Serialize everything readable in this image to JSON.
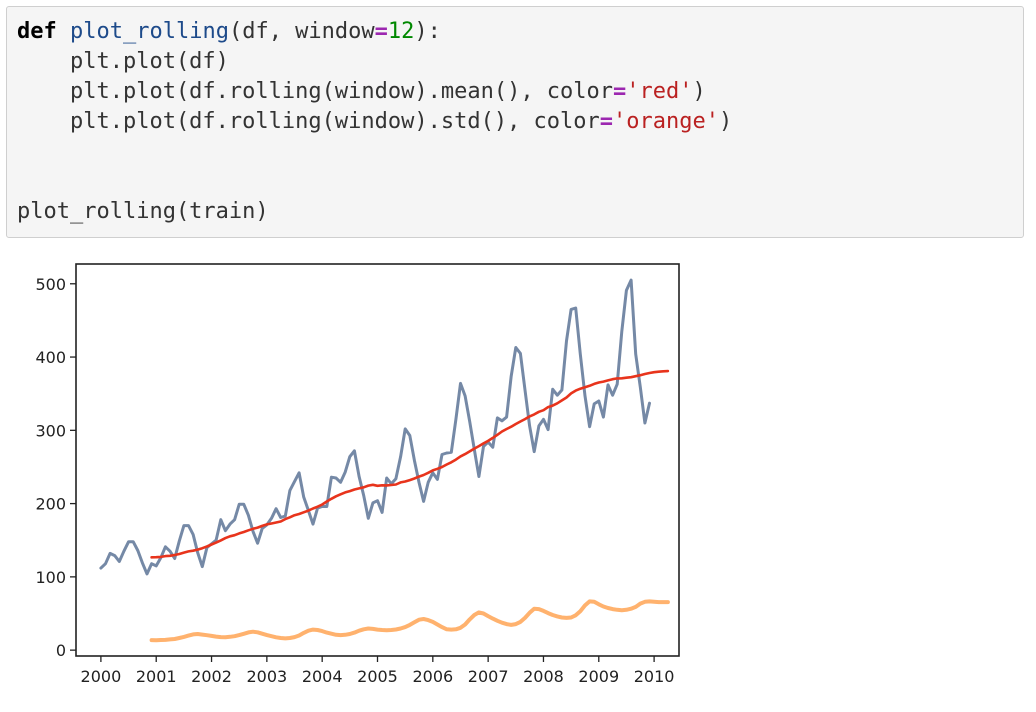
{
  "code_lines": [
    [
      {
        "t": "def",
        "c": "kw"
      },
      {
        "t": " "
      },
      {
        "t": "plot_rolling",
        "c": "fn"
      },
      {
        "t": "(df, window"
      },
      {
        "t": "=",
        "c": "op"
      },
      {
        "t": "12",
        "c": "num"
      },
      {
        "t": "):"
      }
    ],
    [
      {
        "t": "    plt.plot(df)"
      }
    ],
    [
      {
        "t": "    plt.plot(df.rolling(window).mean(), color"
      },
      {
        "t": "=",
        "c": "op"
      },
      {
        "t": "'red'",
        "c": "str"
      },
      {
        "t": ")"
      }
    ],
    [
      {
        "t": "    plt.plot(df.rolling(window).std(), color"
      },
      {
        "t": "=",
        "c": "op"
      },
      {
        "t": "'orange'",
        "c": "str"
      },
      {
        "t": ")"
      }
    ],
    [
      {
        "t": ""
      }
    ],
    [
      {
        "t": ""
      }
    ],
    [
      {
        "t": "plot_rolling(train)"
      }
    ]
  ],
  "chart_data": {
    "type": "line",
    "title": "",
    "xlabel": "",
    "ylabel": "",
    "xlim": [
      1999.55,
      2010.45
    ],
    "ylim": [
      -8,
      527
    ],
    "x_ticks": [
      "2000",
      "2001",
      "2002",
      "2003",
      "2004",
      "2005",
      "2006",
      "2007",
      "2008",
      "2009",
      "2010"
    ],
    "y_ticks": [
      0,
      100,
      200,
      300,
      400,
      500
    ],
    "grid": false,
    "legend": "none",
    "colors": {
      "series": "#7589a6",
      "mean": "#e8341c",
      "std": "#ffb26e"
    },
    "series": [
      {
        "key": "df",
        "x_start": 2000.0,
        "step": 0.0833333,
        "values": [
          112,
          118,
          132,
          129,
          121,
          135,
          148,
          148,
          136,
          119,
          104,
          118,
          115,
          126,
          141,
          135,
          125,
          149,
          170,
          170,
          158,
          133,
          114,
          140,
          145,
          150,
          178,
          163,
          172,
          178,
          199,
          199,
          184,
          162,
          146,
          166,
          171,
          180,
          193,
          181,
          183,
          218,
          230,
          242,
          209,
          191,
          172,
          194,
          196,
          196,
          236,
          235,
          229,
          243,
          264,
          272,
          237,
          211,
          180,
          201,
          204,
          188,
          235,
          227,
          234,
          264,
          302,
          293,
          259,
          229,
          203,
          229,
          242,
          233,
          267,
          269,
          270,
          315,
          364,
          347,
          312,
          274,
          237,
          278,
          284,
          277,
          317,
          313,
          318,
          374,
          413,
          405,
          355,
          306,
          271,
          306,
          315,
          301,
          356,
          348,
          355,
          422,
          465,
          467,
          404,
          347,
          305,
          336,
          340,
          318,
          362,
          348,
          363,
          435,
          491,
          505,
          404,
          359,
          310,
          337
        ]
      },
      {
        "key": "rolling_mean",
        "x_start": 2000.9167,
        "step": 0.0833333,
        "values": [
          126.7,
          126.9,
          127.3,
          128.3,
          128.8,
          129.8,
          131.2,
          133.1,
          134.7,
          135.7,
          137.2,
          139.1,
          141.5,
          144.2,
          146.8,
          149.8,
          152.9,
          155.3,
          156.8,
          159.3,
          161.3,
          163.6,
          165.6,
          167.2,
          169.5,
          171.6,
          172.8,
          174.2,
          175.6,
          178.8,
          181.3,
          184.1,
          185.8,
          188.1,
          190.5,
          193.3,
          195.8,
          198.8,
          202.9,
          206.5,
          210.0,
          212.7,
          215.3,
          217.0,
          219.2,
          220.8,
          222.3,
          224.5,
          225.6,
          224.3,
          225.0,
          224.8,
          225.4,
          226.0,
          228.9,
          230.2,
          232.1,
          234.2,
          236.8,
          239.0,
          242.0,
          245.3,
          247.5,
          250.0,
          253.3,
          256.4,
          260.0,
          264.4,
          267.6,
          271.2,
          275.0,
          278.5,
          282.2,
          285.6,
          289.7,
          293.9,
          298.4,
          301.8,
          305.0,
          308.6,
          312.0,
          315.3,
          319.0,
          321.8,
          325.3,
          327.4,
          331.7,
          333.8,
          336.9,
          340.9,
          344.8,
          350.4,
          354.2,
          356.8,
          358.9,
          360.8,
          363.3,
          365.3,
          366.5,
          368.1,
          369.8,
          370.8,
          371.0,
          371.8,
          372.5,
          373.9,
          375.2,
          376.9,
          378.3,
          379.3,
          380.0,
          380.5,
          380.8
        ]
      },
      {
        "key": "rolling_std",
        "x_start": 2000.9167,
        "step": 0.0833333,
        "values": [
          13.7,
          13.5,
          13.8,
          14.0,
          14.6,
          15.2,
          16.5,
          18.0,
          19.8,
          21.5,
          22.0,
          21.2,
          20.4,
          19.5,
          18.5,
          17.8,
          17.6,
          18.2,
          19.0,
          20.5,
          22.3,
          24.2,
          25.1,
          24.3,
          22.5,
          20.5,
          19.0,
          17.5,
          16.5,
          16.0,
          16.5,
          17.8,
          20.0,
          23.5,
          26.5,
          28.0,
          27.5,
          26.0,
          24.0,
          22.5,
          21.0,
          20.5,
          21.0,
          22.0,
          24.0,
          26.5,
          28.5,
          29.5,
          29.0,
          28.0,
          27.5,
          27.2,
          27.5,
          28.2,
          29.5,
          31.5,
          34.5,
          38.0,
          41.5,
          42.5,
          41.0,
          38.5,
          35.0,
          31.5,
          28.5,
          28.0,
          28.5,
          30.5,
          35.0,
          42.0,
          48.0,
          51.5,
          50.0,
          46.5,
          43.0,
          40.0,
          37.5,
          35.5,
          34.5,
          35.5,
          38.5,
          44.0,
          51.0,
          56.5,
          56.0,
          53.5,
          50.5,
          48.0,
          46.0,
          44.5,
          44.0,
          44.5,
          47.5,
          53.0,
          61.0,
          66.5,
          66.0,
          62.5,
          59.5,
          57.5,
          56.0,
          55.0,
          54.5,
          55.0,
          56.5,
          59.0,
          63.5,
          66.0,
          66.5,
          66.0,
          65.5,
          65.5,
          65.5
        ]
      }
    ]
  }
}
